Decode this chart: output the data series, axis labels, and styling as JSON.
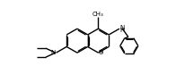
{
  "background": "#ffffff",
  "fig_width": 2.06,
  "fig_height": 0.92,
  "dpi": 100,
  "BL": 0.175,
  "doff": 0.015,
  "lw": 1.0,
  "lw_inner": 0.85,
  "fs": 5.0,
  "fs2": 4.5,
  "rcx": 1.08,
  "rcy": 0.47,
  "BL2": 0.13
}
